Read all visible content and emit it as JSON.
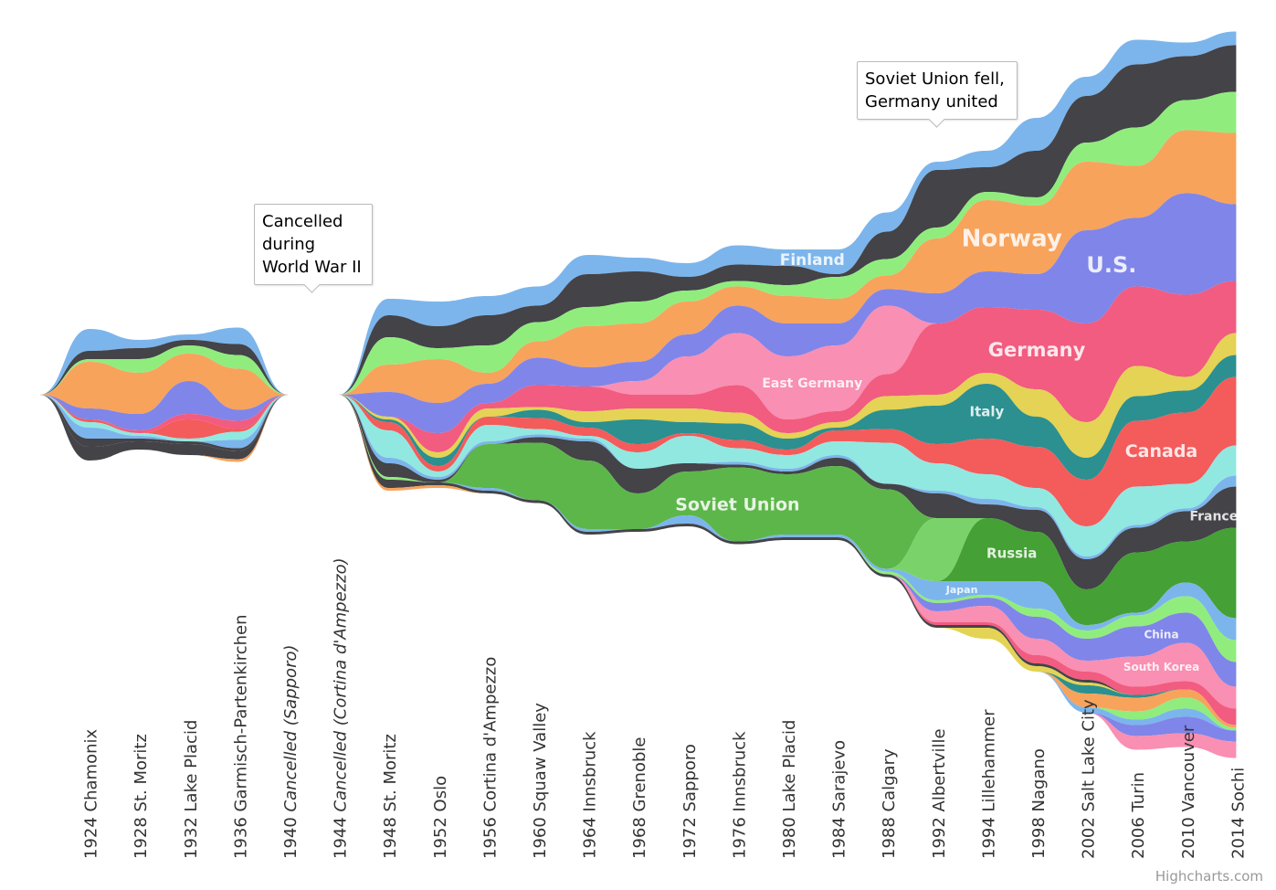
{
  "chart_data": {
    "type": "area",
    "stacking": "stream",
    "legend": "none",
    "grid": false,
    "y_axis_visible": false,
    "categories": [
      {
        "year": "",
        "place": ""
      },
      {
        "year": "1924",
        "place": "Chamonix"
      },
      {
        "year": "1928",
        "place": "St. Moritz"
      },
      {
        "year": "1932",
        "place": "Lake Placid"
      },
      {
        "year": "1936",
        "place": "Garmisch-Partenkirchen"
      },
      {
        "year": "1940",
        "place": "Cancelled (Sapporo)",
        "cancelled": true
      },
      {
        "year": "1944",
        "place": "Cancelled (Cortina d'Ampezzo)",
        "cancelled": true
      },
      {
        "year": "1948",
        "place": "St. Moritz"
      },
      {
        "year": "1952",
        "place": "Oslo"
      },
      {
        "year": "1956",
        "place": "Cortina d'Ampezzo"
      },
      {
        "year": "1960",
        "place": "Squaw Valley"
      },
      {
        "year": "1964",
        "place": "Innsbruck"
      },
      {
        "year": "1968",
        "place": "Grenoble"
      },
      {
        "year": "1972",
        "place": "Sapporo"
      },
      {
        "year": "1976",
        "place": "Innsbruck"
      },
      {
        "year": "1980",
        "place": "Lake Placid"
      },
      {
        "year": "1984",
        "place": "Sarajevo"
      },
      {
        "year": "1988",
        "place": "Calgary"
      },
      {
        "year": "1992",
        "place": "Albertville"
      },
      {
        "year": "1994",
        "place": "Lillehammer"
      },
      {
        "year": "1998",
        "place": "Nagano"
      },
      {
        "year": "2002",
        "place": "Salt Lake City"
      },
      {
        "year": "2006",
        "place": "Turin"
      },
      {
        "year": "2010",
        "place": "Vancouver"
      },
      {
        "year": "2014",
        "place": "Sochi"
      }
    ],
    "series": [
      {
        "name": "Finland",
        "color": "#7cb5ec",
        "values": [
          0,
          8,
          3,
          2,
          6,
          0,
          0,
          6,
          9,
          7,
          7,
          7,
          5,
          5,
          7,
          6,
          9,
          7,
          3,
          6,
          12,
          7,
          9,
          5,
          5
        ]
      },
      {
        "color": "#434348",
        "values": [
          0,
          3,
          4,
          2,
          4,
          0,
          0,
          8,
          8,
          11,
          6,
          12,
          11,
          5,
          6,
          7,
          1,
          10,
          21,
          9,
          17,
          17,
          23,
          16,
          17
        ]
      },
      {
        "color": "#90ed7d",
        "values": [
          0,
          1,
          5,
          3,
          5,
          0,
          0,
          10,
          4,
          10,
          7,
          7,
          8,
          4,
          2,
          4,
          8,
          6,
          4,
          3,
          3,
          7,
          14,
          11,
          15
        ]
      },
      {
        "name": "Norway",
        "color": "#f7a35c",
        "values": [
          0,
          17,
          15,
          10,
          15,
          0,
          0,
          10,
          16,
          4,
          6,
          15,
          14,
          12,
          7,
          10,
          9,
          5,
          20,
          26,
          25,
          25,
          19,
          23,
          26
        ]
      },
      {
        "name": "U.S.",
        "color": "#8085e9",
        "values": [
          0,
          4,
          6,
          12,
          4,
          0,
          0,
          9,
          11,
          7,
          10,
          7,
          7,
          8,
          10,
          12,
          8,
          6,
          11,
          13,
          13,
          34,
          25,
          37,
          28
        ]
      },
      {
        "name": "East Germany",
        "color": "#f98fb2",
        "values": [
          0,
          0,
          0,
          0,
          0,
          0,
          0,
          0,
          0,
          0,
          0,
          0,
          5,
          14,
          19,
          23,
          24,
          25,
          0,
          0,
          0,
          0,
          0,
          0,
          0
        ]
      },
      {
        "name": "Germany",
        "color": "#f15c80",
        "values": [
          0,
          0,
          1,
          2,
          3,
          0,
          0,
          0,
          7,
          2,
          8,
          9,
          5,
          5,
          10,
          5,
          4,
          8,
          26,
          24,
          29,
          36,
          29,
          30,
          19
        ]
      },
      {
        "color": "#e4d354",
        "values": [
          0,
          0,
          0,
          0,
          0,
          0,
          0,
          1,
          2,
          3,
          1,
          4,
          4,
          5,
          4,
          2,
          2,
          5,
          4,
          4,
          10,
          13,
          11,
          5,
          8
        ]
      },
      {
        "name": "Italy",
        "color": "#2b908f",
        "values": [
          0,
          0,
          0,
          0,
          0,
          0,
          0,
          1,
          3,
          0,
          3,
          2,
          9,
          4,
          6,
          4,
          1,
          7,
          14,
          20,
          11,
          8,
          9,
          8,
          8
        ]
      },
      {
        "name": "Canada",
        "color": "#f45b5b",
        "values": [
          0,
          1,
          0,
          7,
          1,
          0,
          0,
          3,
          2,
          3,
          4,
          3,
          3,
          1,
          3,
          2,
          4,
          5,
          7,
          13,
          15,
          17,
          24,
          26,
          25
        ]
      },
      {
        "color": "#91e8e1",
        "values": [
          0,
          2,
          1,
          1,
          3,
          0,
          0,
          10,
          2,
          6,
          2,
          1,
          6,
          10,
          5,
          5,
          5,
          15,
          10,
          9,
          7,
          11,
          14,
          9,
          11
        ]
      },
      {
        "color": "#7cb5ec",
        "values": [
          0,
          4,
          1,
          0,
          3,
          0,
          0,
          2,
          1,
          1,
          1,
          1,
          0,
          0,
          1,
          1,
          1,
          0,
          1,
          2,
          1,
          1,
          1,
          1,
          4
        ]
      },
      {
        "name": "France",
        "color": "#434348",
        "values": [
          0,
          3,
          1,
          1,
          1,
          0,
          0,
          5,
          1,
          0,
          2,
          7,
          9,
          3,
          1,
          1,
          3,
          2,
          9,
          5,
          8,
          11,
          9,
          11,
          15
        ]
      },
      {
        "name": "Soviet Union",
        "color": "#5db64a",
        "values": [
          0,
          0,
          0,
          0,
          0,
          0,
          0,
          0,
          0,
          16,
          21,
          25,
          13,
          16,
          27,
          22,
          25,
          29,
          0,
          0,
          0,
          0,
          0,
          0,
          0
        ]
      },
      {
        "color": "#7ad36a",
        "values": [
          0,
          0,
          0,
          0,
          0,
          0,
          0,
          0,
          0,
          0,
          0,
          0,
          0,
          0,
          0,
          0,
          0,
          0,
          23,
          0,
          0,
          0,
          0,
          0,
          0
        ]
      },
      {
        "name": "Russia",
        "color": "#45a035",
        "values": [
          0,
          0,
          0,
          0,
          0,
          0,
          0,
          0,
          0,
          0,
          0,
          0,
          0,
          0,
          0,
          0,
          0,
          0,
          0,
          23,
          18,
          13,
          22,
          15,
          33
        ]
      },
      {
        "name": "Japan",
        "color": "#7cb5ec",
        "values": [
          0,
          0,
          0,
          0,
          0,
          0,
          0,
          0,
          0,
          1,
          0,
          1,
          0,
          3,
          0,
          1,
          1,
          1,
          7,
          5,
          10,
          2,
          1,
          5,
          8
        ]
      },
      {
        "color": "#90ed7d",
        "values": [
          0,
          0,
          0,
          0,
          0,
          0,
          0,
          1,
          0,
          0,
          0,
          0,
          0,
          0,
          0,
          0,
          0,
          1,
          1,
          1,
          3,
          3,
          4,
          6,
          8
        ]
      },
      {
        "name": "China",
        "color": "#8085e9",
        "values": [
          0,
          0,
          0,
          0,
          0,
          0,
          0,
          0,
          0,
          0,
          0,
          0,
          0,
          0,
          0,
          0,
          0,
          0,
          3,
          3,
          8,
          8,
          11,
          11,
          9
        ]
      },
      {
        "name": "South Korea",
        "color": "#f98fb2",
        "values": [
          0,
          0,
          0,
          0,
          0,
          0,
          0,
          0,
          0,
          0,
          0,
          0,
          0,
          0,
          0,
          0,
          0,
          0,
          4,
          6,
          6,
          4,
          11,
          14,
          8
        ]
      },
      {
        "color": "#f15c80",
        "values": [
          0,
          0,
          0,
          0,
          0,
          0,
          0,
          0,
          0,
          0,
          0,
          0,
          0,
          0,
          0,
          0,
          0,
          0,
          1,
          1,
          3,
          3,
          3,
          3,
          6
        ]
      },
      {
        "color": "#434348",
        "values": [
          0,
          5,
          3,
          4,
          3,
          0,
          0,
          3,
          1,
          1,
          1,
          1,
          1,
          1,
          1,
          1,
          1,
          1,
          1,
          1,
          1,
          1,
          0,
          0,
          0
        ]
      },
      {
        "color": "#e4d354",
        "values": [
          0,
          0,
          0,
          0,
          0,
          0,
          0,
          0,
          0,
          0,
          0,
          0,
          0,
          0,
          0,
          0,
          0,
          0,
          0,
          4,
          2,
          1,
          0,
          0,
          0
        ]
      },
      {
        "color": "#2b908f",
        "values": [
          0,
          0,
          0,
          0,
          0,
          0,
          0,
          0,
          0,
          0,
          0,
          0,
          0,
          0,
          0,
          0,
          0,
          0,
          0,
          0,
          0,
          3,
          1,
          0,
          0
        ]
      },
      {
        "color": "#f7a35c",
        "values": [
          0,
          0,
          0,
          0,
          1,
          0,
          0,
          1,
          1,
          0,
          0,
          0,
          0,
          0,
          0,
          0,
          0,
          0,
          0,
          0,
          0,
          5,
          5,
          3,
          1
        ]
      },
      {
        "color": "#90ed7d",
        "values": [
          0,
          0,
          0,
          0,
          0,
          0,
          0,
          0,
          0,
          0,
          0,
          0,
          0,
          0,
          0,
          0,
          0,
          0,
          0,
          0,
          0,
          0,
          3,
          4,
          1
        ]
      },
      {
        "color": "#7cb5ec",
        "values": [
          0,
          0,
          0,
          0,
          0,
          0,
          0,
          0,
          0,
          0,
          0,
          0,
          0,
          0,
          0,
          0,
          0,
          0,
          0,
          0,
          0,
          2,
          2,
          3,
          0
        ]
      },
      {
        "color": "#8085e9",
        "values": [
          0,
          0,
          0,
          0,
          0,
          0,
          0,
          0,
          0,
          0,
          0,
          0,
          0,
          0,
          0,
          0,
          0,
          0,
          0,
          0,
          0,
          0,
          4,
          6,
          4
        ]
      },
      {
        "color": "#f98fb2",
        "values": [
          0,
          0,
          0,
          0,
          0,
          0,
          0,
          0,
          0,
          0,
          0,
          0,
          0,
          0,
          0,
          0,
          0,
          0,
          0,
          0,
          0,
          0,
          5,
          5,
          6
        ]
      }
    ],
    "annotations": [
      {
        "lines": [
          "Cancelled",
          "during",
          "World War II"
        ]
      },
      {
        "lines": [
          "Soviet Union fell,",
          "Germany united"
        ]
      }
    ]
  },
  "credits": "Highcharts.com"
}
